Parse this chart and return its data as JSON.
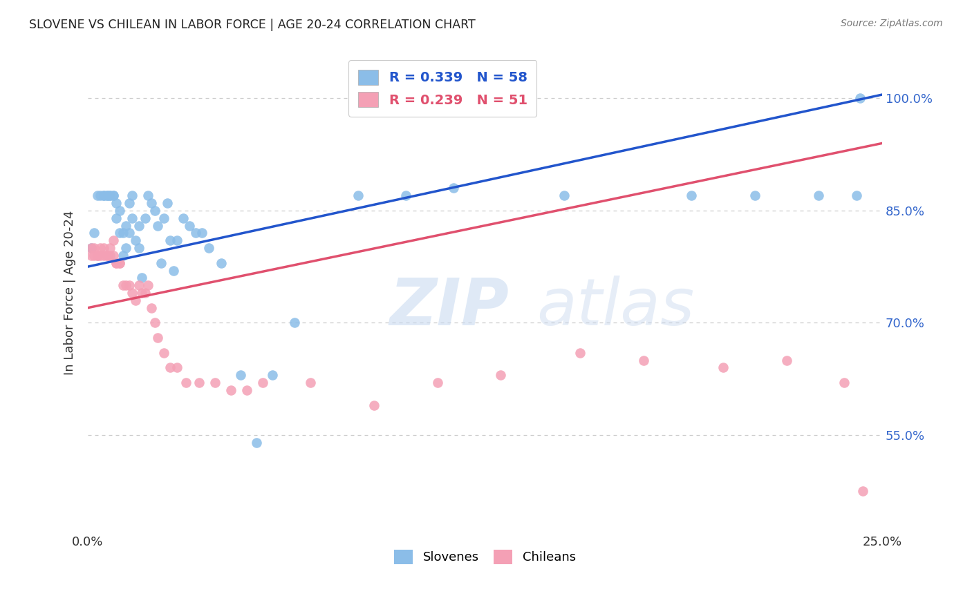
{
  "title": "SLOVENE VS CHILEAN IN LABOR FORCE | AGE 20-24 CORRELATION CHART",
  "source": "Source: ZipAtlas.com",
  "ylabel": "In Labor Force | Age 20-24",
  "xlim": [
    0.0,
    0.25
  ],
  "ylim": [
    0.42,
    1.06
  ],
  "yticks": [
    0.55,
    0.7,
    0.85,
    1.0
  ],
  "ytick_labels": [
    "55.0%",
    "70.0%",
    "85.0%",
    "100.0%"
  ],
  "xticks": [
    0.0,
    0.05,
    0.1,
    0.15,
    0.2,
    0.25
  ],
  "xtick_labels": [
    "0.0%",
    "",
    "",
    "",
    "",
    "25.0%"
  ],
  "slovene_color": "#8bbde8",
  "chilean_color": "#f4a0b5",
  "trendline_slovene_color": "#2255cc",
  "trendline_chilean_color": "#e0506e",
  "R_slovene": 0.339,
  "N_slovene": 58,
  "R_chilean": 0.239,
  "N_chilean": 51,
  "background_color": "#ffffff",
  "watermark_text": "ZIPatlas",
  "trendline_s_x0": 0.0,
  "trendline_s_y0": 0.775,
  "trendline_s_x1": 0.25,
  "trendline_s_y1": 1.005,
  "trendline_c_x0": 0.0,
  "trendline_c_y0": 0.72,
  "trendline_c_x1": 0.25,
  "trendline_c_y1": 0.94,
  "slovene_x": [
    0.001,
    0.002,
    0.003,
    0.004,
    0.005,
    0.005,
    0.006,
    0.006,
    0.007,
    0.007,
    0.008,
    0.008,
    0.009,
    0.009,
    0.01,
    0.01,
    0.011,
    0.011,
    0.012,
    0.012,
    0.013,
    0.013,
    0.014,
    0.014,
    0.015,
    0.016,
    0.016,
    0.017,
    0.018,
    0.019,
    0.02,
    0.021,
    0.022,
    0.023,
    0.024,
    0.025,
    0.026,
    0.027,
    0.028,
    0.03,
    0.032,
    0.034,
    0.036,
    0.038,
    0.042,
    0.048,
    0.053,
    0.058,
    0.065,
    0.085,
    0.1,
    0.115,
    0.15,
    0.19,
    0.21,
    0.23,
    0.242,
    0.243
  ],
  "slovene_y": [
    0.8,
    0.82,
    0.87,
    0.87,
    0.87,
    0.87,
    0.87,
    0.87,
    0.87,
    0.87,
    0.87,
    0.87,
    0.86,
    0.84,
    0.85,
    0.82,
    0.82,
    0.79,
    0.83,
    0.8,
    0.82,
    0.86,
    0.87,
    0.84,
    0.81,
    0.83,
    0.8,
    0.76,
    0.84,
    0.87,
    0.86,
    0.85,
    0.83,
    0.78,
    0.84,
    0.86,
    0.81,
    0.77,
    0.81,
    0.84,
    0.83,
    0.82,
    0.82,
    0.8,
    0.78,
    0.63,
    0.54,
    0.63,
    0.7,
    0.87,
    0.87,
    0.88,
    0.87,
    0.87,
    0.87,
    0.87,
    0.87,
    1.0
  ],
  "chilean_x": [
    0.001,
    0.001,
    0.002,
    0.002,
    0.003,
    0.003,
    0.004,
    0.004,
    0.005,
    0.005,
    0.006,
    0.006,
    0.007,
    0.007,
    0.008,
    0.008,
    0.009,
    0.009,
    0.01,
    0.01,
    0.011,
    0.012,
    0.013,
    0.014,
    0.015,
    0.016,
    0.017,
    0.018,
    0.019,
    0.02,
    0.021,
    0.022,
    0.024,
    0.026,
    0.028,
    0.031,
    0.035,
    0.04,
    0.045,
    0.05,
    0.055,
    0.07,
    0.09,
    0.11,
    0.13,
    0.155,
    0.175,
    0.2,
    0.22,
    0.238,
    0.244
  ],
  "chilean_y": [
    0.79,
    0.8,
    0.8,
    0.79,
    0.79,
    0.79,
    0.79,
    0.8,
    0.79,
    0.8,
    0.79,
    0.79,
    0.8,
    0.79,
    0.79,
    0.81,
    0.78,
    0.78,
    0.78,
    0.78,
    0.75,
    0.75,
    0.75,
    0.74,
    0.73,
    0.75,
    0.74,
    0.74,
    0.75,
    0.72,
    0.7,
    0.68,
    0.66,
    0.64,
    0.64,
    0.62,
    0.62,
    0.62,
    0.61,
    0.61,
    0.62,
    0.62,
    0.59,
    0.62,
    0.63,
    0.66,
    0.65,
    0.64,
    0.65,
    0.62,
    0.475
  ]
}
